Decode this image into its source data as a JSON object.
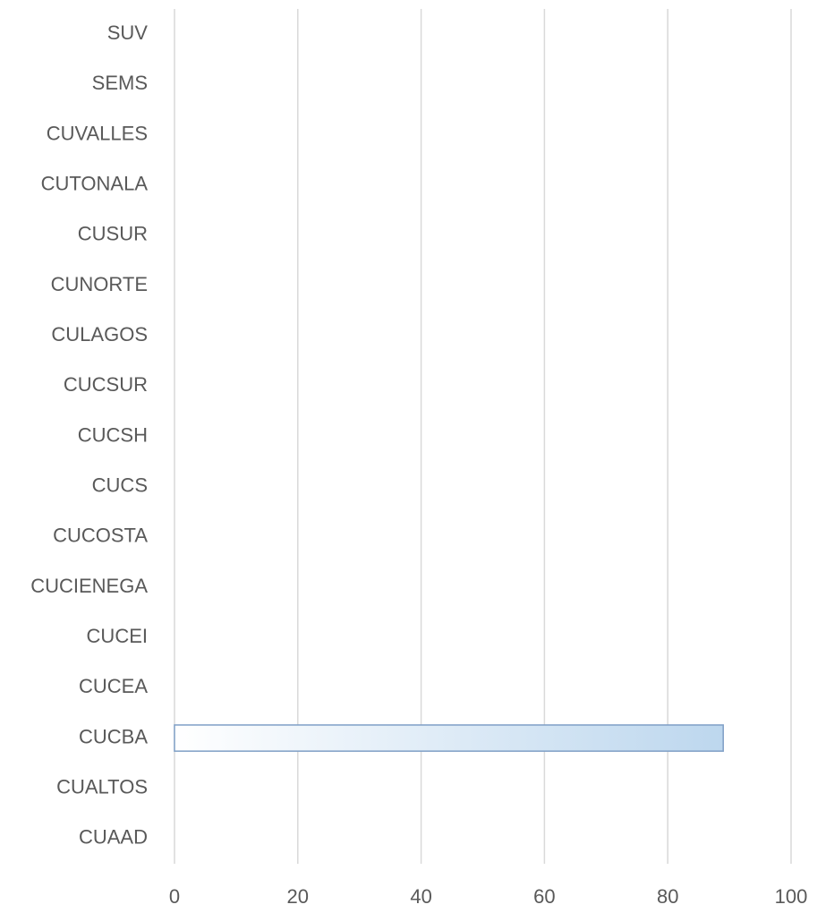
{
  "chart_data": {
    "type": "bar",
    "orientation": "horizontal",
    "categories": [
      "CUAAD",
      "CUALTOS",
      "CUCBA",
      "CUCEA",
      "CUCEI",
      "CUCIENEGA",
      "CUCOSTA",
      "CUCS",
      "CUCSH",
      "CUCSUR",
      "CULAGOS",
      "CUNORTE",
      "CUSUR",
      "CUTONALA",
      "CUVALLES",
      "SEMS",
      "SUV"
    ],
    "values": [
      0,
      0,
      89,
      0,
      0,
      0,
      0,
      0,
      0,
      0,
      0,
      0,
      0,
      0,
      0,
      0,
      0
    ],
    "color": "#bdd7ee",
    "edge_color": "#7f9fc6",
    "xlim": [
      0,
      100
    ],
    "xticks": [
      0,
      20,
      40,
      60,
      80,
      100
    ],
    "grid": true
  }
}
